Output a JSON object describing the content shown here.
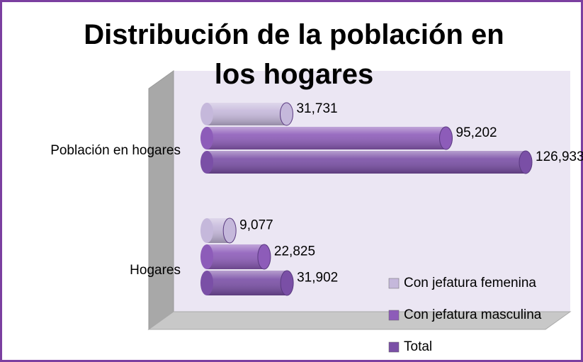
{
  "chart_data": {
    "type": "bar3d",
    "orientation": "horizontal",
    "title_lines": [
      "Distribución de la población en",
      "los hogares"
    ],
    "categories": [
      "Población en hogares",
      "Hogares"
    ],
    "series": [
      {
        "name": "Con jefatura femenina",
        "color": "#c5b8db",
        "values": [
          31731,
          9077
        ],
        "value_labels": [
          "31,731",
          "9,077"
        ]
      },
      {
        "name": "Con jefatura masculina",
        "color": "#8d5cb9",
        "values": [
          95202,
          22825
        ],
        "value_labels": [
          "95,202",
          "22,825"
        ]
      },
      {
        "name": "Total",
        "color": "#7a4fa6",
        "values": [
          126933,
          31902
        ],
        "value_labels": [
          "126,933",
          "31,902"
        ]
      }
    ]
  }
}
